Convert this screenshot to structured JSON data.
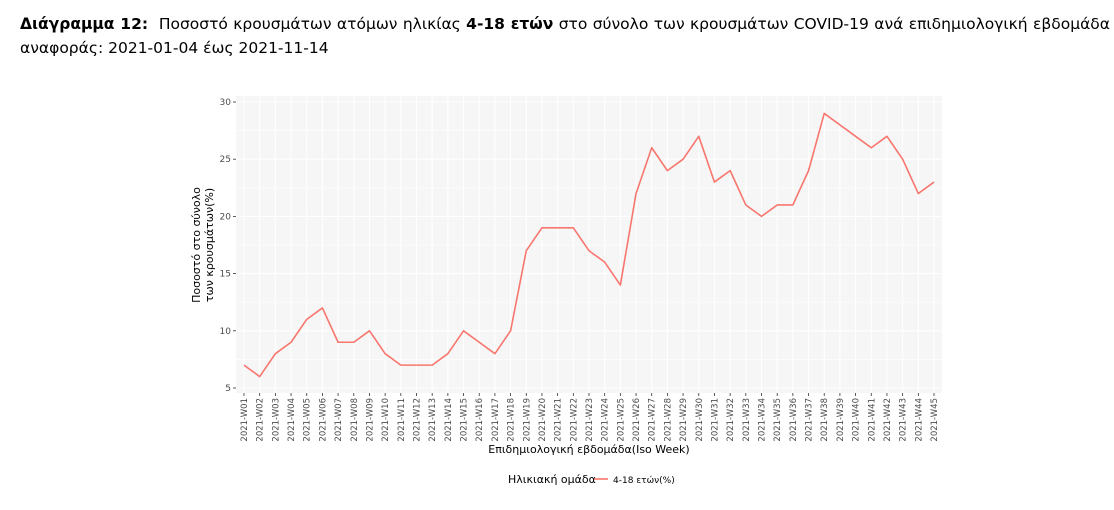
{
  "caption": {
    "label": "Διάγραμμα 12:",
    "part1": "Ποσοστό κρουσμάτων ατόμων ηλικίας",
    "age_bold": "4-18 ετών",
    "part2": "στο σύνολο των κρουσμάτων COVID-19 ανά επιδημιολογική εβδομάδα αναφοράς: 2021-01-04 έως 2021-11-14"
  },
  "chart_data": {
    "type": "line",
    "xlabel": "Επιδημιολογική εβδομάδα(Iso Week)",
    "ylabel_line1": "Ποσοστό στο σύνολο",
    "ylabel_line2": "των κρουσμάτων(%)",
    "ylim": [
      5,
      30
    ],
    "yticks": [
      5,
      10,
      15,
      20,
      25,
      30
    ],
    "grid": true,
    "legend_position": "bottom",
    "legend_title": "Ηλικιακή ομάδα",
    "line_color": "#f8766d",
    "categories": [
      "2021-W01",
      "2021-W02",
      "2021-W03",
      "2021-W04",
      "2021-W05",
      "2021-W06",
      "2021-W07",
      "2021-W08",
      "2021-W09",
      "2021-W10",
      "2021-W11",
      "2021-W12",
      "2021-W13",
      "2021-W14",
      "2021-W15",
      "2021-W16",
      "2021-W17",
      "2021-W18",
      "2021-W19",
      "2021-W20",
      "2021-W21",
      "2021-W22",
      "2021-W23",
      "2021-W24",
      "2021-W25",
      "2021-W26",
      "2021-W27",
      "2021-W28",
      "2021-W29",
      "2021-W30",
      "2021-W31",
      "2021-W32",
      "2021-W33",
      "2021-W34",
      "2021-W35",
      "2021-W36",
      "2021-W37",
      "2021-W38",
      "2021-W39",
      "2021-W40",
      "2021-W41",
      "2021-W42",
      "2021-W43",
      "2021-W44",
      "2021-W45"
    ],
    "series": [
      {
        "name": "4-18 ετών(%)",
        "values": [
          7,
          6,
          8,
          9,
          11,
          12,
          9,
          9,
          10,
          8,
          7,
          7,
          7,
          8,
          10,
          9,
          8,
          10,
          17,
          19,
          19,
          19,
          17,
          16,
          14,
          22,
          26,
          24,
          25,
          27,
          23,
          24,
          21,
          20,
          21,
          21,
          24,
          29,
          28,
          27,
          26,
          27,
          25,
          22,
          23
        ]
      }
    ]
  }
}
